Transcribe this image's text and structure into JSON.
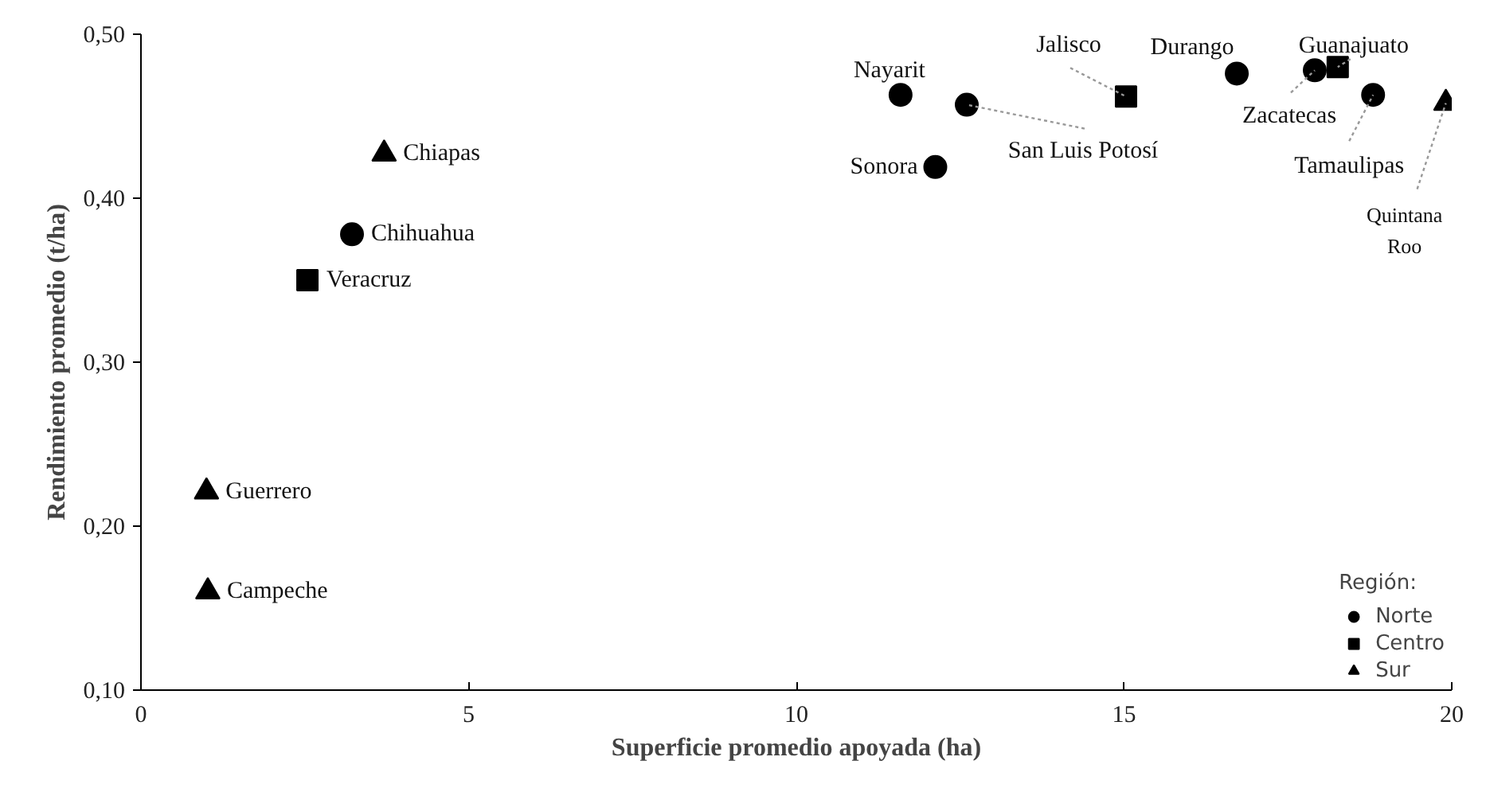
{
  "chart_data": {
    "type": "scatter",
    "xlabel": "Superficie promedio apoyada (ha)",
    "ylabel": "Rendimiento promedio (t/ha)",
    "legend_title": "Región:",
    "legend": "bottom right",
    "grid": false,
    "xlim": [
      0,
      20
    ],
    "xticks": [
      0,
      5,
      10,
      15,
      20
    ],
    "ylim": [
      0.1,
      0.5
    ],
    "yticks": [
      {
        "value": 0.1,
        "label": "0,10"
      },
      {
        "value": 0.2,
        "label": "0,20"
      },
      {
        "value": 0.3,
        "label": "0,30"
      },
      {
        "value": 0.4,
        "label": "0,40"
      },
      {
        "value": 0.5,
        "label": "0,50"
      }
    ],
    "series": [
      {
        "name": "Norte",
        "color": "#000000",
        "marker": "circle",
        "x": [
          3.22,
          11.59,
          12.12,
          12.6,
          16.72,
          17.91,
          18.8
        ],
        "values": [
          0.378,
          0.463,
          0.419,
          0.457,
          0.476,
          0.478,
          0.463
        ]
      },
      {
        "name": "Centro",
        "color": "#000000",
        "marker": "square",
        "x": [
          2.54,
          15.03,
          18.26
        ],
        "values": [
          0.35,
          0.462,
          0.48
        ]
      },
      {
        "name": "Sur",
        "color": "#000000",
        "marker": "triangle",
        "x": [
          3.71,
          1.0,
          1.02,
          19.91
        ],
        "values": [
          0.427,
          0.221,
          0.16,
          0.458
        ]
      }
    ],
    "annotations": [
      {
        "text": "Chiapas",
        "x": 3.71,
        "y": 0.427
      },
      {
        "text": "Chihuahua",
        "x": 3.22,
        "y": 0.378
      },
      {
        "text": "Veracruz",
        "x": 2.54,
        "y": 0.35
      },
      {
        "text": "Guerrero",
        "x": 1.0,
        "y": 0.221
      },
      {
        "text": "Campeche",
        "x": 1.02,
        "y": 0.16
      },
      {
        "text": "Nayarit",
        "x": 11.59,
        "y": 0.463
      },
      {
        "text": "Sonora",
        "x": 12.12,
        "y": 0.419
      },
      {
        "text": "San Luis Potosí",
        "x": 12.6,
        "y": 0.457
      },
      {
        "text": "Jalisco",
        "x": 15.03,
        "y": 0.462
      },
      {
        "text": "Durango",
        "x": 16.72,
        "y": 0.476
      },
      {
        "text": "Zacatecas",
        "x": 17.91,
        "y": 0.478
      },
      {
        "text": "Guanajuato",
        "x": 18.26,
        "y": 0.48
      },
      {
        "text": "Tamaulipas",
        "x": 18.8,
        "y": 0.463
      },
      {
        "text": "Quintana Roo",
        "x": 19.91,
        "y": 0.458
      }
    ]
  }
}
